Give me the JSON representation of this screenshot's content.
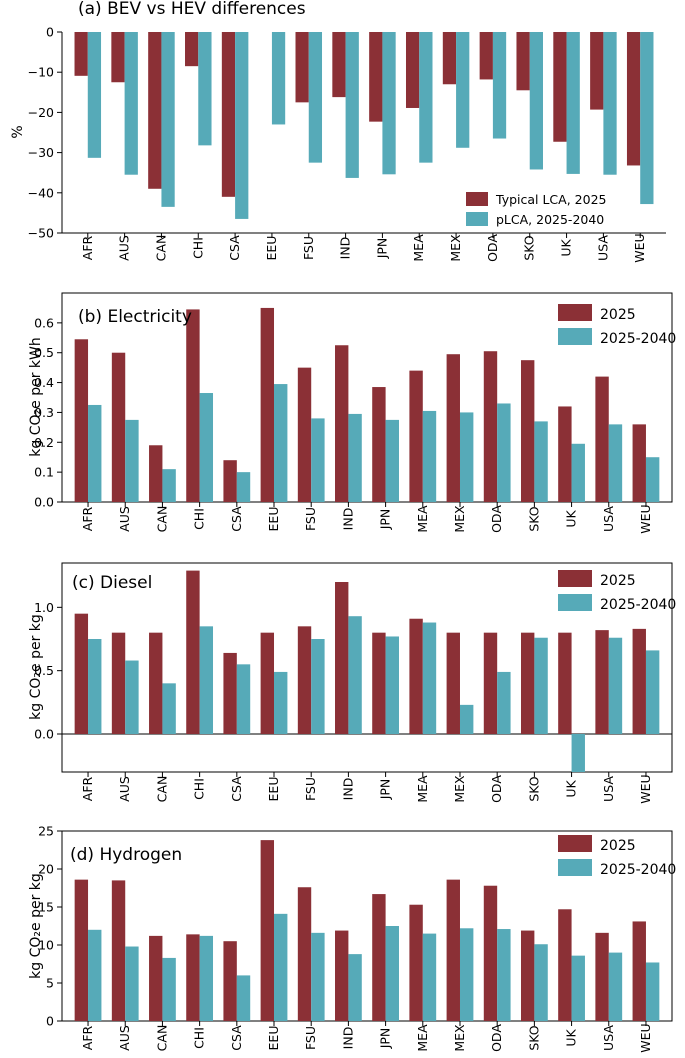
{
  "colors": {
    "series1": "#8b3036",
    "series2": "#56aab8",
    "axis": "#000000"
  },
  "chart_data": [
    {
      "type": "bar",
      "title": "(a) BEV vs HEV differences",
      "xlabel": "",
      "ylabel": "%",
      "ylim": [
        -50,
        0
      ],
      "yticks": [
        "0",
        "−10",
        "−20",
        "−30",
        "−40",
        "−50"
      ],
      "categories": [
        "AFR",
        "AUS",
        "CAN",
        "CHI",
        "CSA",
        "EEU",
        "FSU",
        "IND",
        "JPN",
        "MEA",
        "MEX",
        "ODA",
        "SKO",
        "UK",
        "USA",
        "WEU"
      ],
      "series": [
        {
          "name": "Typical LCA, 2025",
          "values": [
            -10.9,
            -12.5,
            -39,
            -8.5,
            -41,
            0,
            -17.5,
            -16.2,
            -22.3,
            -18.9,
            -13,
            -11.8,
            -14.5,
            -27.3,
            -19.3,
            -33.2
          ]
        },
        {
          "name": "pLCA, 2025-2040",
          "values": [
            -31.3,
            -35.5,
            -43.5,
            -28.2,
            -46.5,
            -23,
            -32.5,
            -36.3,
            -35.4,
            -32.5,
            -28.8,
            -26.5,
            -34.2,
            -35.3,
            -35.5,
            -42.8
          ]
        }
      ],
      "legend": "bottom-right"
    },
    {
      "type": "bar",
      "title": "(b) Electricity",
      "xlabel": "",
      "ylabel": "kg CO₂e per kWh",
      "ylim": [
        0,
        0.7
      ],
      "yticks": [
        "0.0",
        "0.1",
        "0.2",
        "0.3",
        "0.4",
        "0.5",
        "0.6"
      ],
      "categories": [
        "AFR",
        "AUS",
        "CAN",
        "CHI",
        "CSA",
        "EEU",
        "FSU",
        "IND",
        "JPN",
        "MEA",
        "MEX",
        "ODA",
        "SKO",
        "UK",
        "USA",
        "WEU"
      ],
      "series": [
        {
          "name": "2025",
          "values": [
            0.545,
            0.5,
            0.19,
            0.645,
            0.14,
            0.65,
            0.45,
            0.525,
            0.385,
            0.44,
            0.495,
            0.505,
            0.475,
            0.32,
            0.42,
            0.26
          ]
        },
        {
          "name": "2025-2040",
          "values": [
            0.325,
            0.275,
            0.11,
            0.365,
            0.1,
            0.395,
            0.28,
            0.295,
            0.275,
            0.305,
            0.3,
            0.33,
            0.27,
            0.195,
            0.26,
            0.15
          ]
        }
      ],
      "legend": "top-right"
    },
    {
      "type": "bar",
      "title": "(c) Diesel",
      "xlabel": "",
      "ylabel": "kg CO₂e per kg",
      "ylim": [
        -0.3,
        1.35
      ],
      "yticks": [
        "0.0",
        "0.5",
        "1.0"
      ],
      "categories": [
        "AFR",
        "AUS",
        "CAN",
        "CHI",
        "CSA",
        "EEU",
        "FSU",
        "IND",
        "JPN",
        "MEA",
        "MEX",
        "ODA",
        "SKO",
        "UK",
        "USA",
        "WEU"
      ],
      "series": [
        {
          "name": "2025",
          "values": [
            0.95,
            0.8,
            0.8,
            1.29,
            0.64,
            0.8,
            0.85,
            1.2,
            0.8,
            0.91,
            0.8,
            0.8,
            0.8,
            0.8,
            0.82,
            0.83
          ]
        },
        {
          "name": "2025-2040",
          "values": [
            0.75,
            0.58,
            0.4,
            0.85,
            0.55,
            0.49,
            0.75,
            0.93,
            0.77,
            0.88,
            0.23,
            0.49,
            0.76,
            -0.3,
            0.76,
            0.66
          ]
        }
      ],
      "legend": "top-right"
    },
    {
      "type": "bar",
      "title": "(d) Hydrogen",
      "xlabel": "",
      "ylabel": "kg CO₂e per kg",
      "ylim": [
        0,
        25
      ],
      "yticks": [
        "0",
        "5",
        "10",
        "15",
        "20",
        "25"
      ],
      "categories": [
        "AFR",
        "AUS",
        "CAN",
        "CHI",
        "CSA",
        "EEU",
        "FSU",
        "IND",
        "JPN",
        "MEA",
        "MEX",
        "ODA",
        "SKO",
        "UK",
        "USA",
        "WEU"
      ],
      "series": [
        {
          "name": "2025",
          "values": [
            18.6,
            18.5,
            11.2,
            11.4,
            10.5,
            23.8,
            17.6,
            11.9,
            16.7,
            15.3,
            18.6,
            17.8,
            11.9,
            14.7,
            11.6,
            13.1
          ]
        },
        {
          "name": "2025-2040",
          "values": [
            12,
            9.8,
            8.3,
            11.2,
            6,
            14.1,
            11.6,
            8.8,
            12.5,
            11.5,
            12.2,
            12.1,
            10.1,
            8.6,
            9,
            7.7
          ]
        }
      ],
      "legend": "top-right"
    }
  ]
}
